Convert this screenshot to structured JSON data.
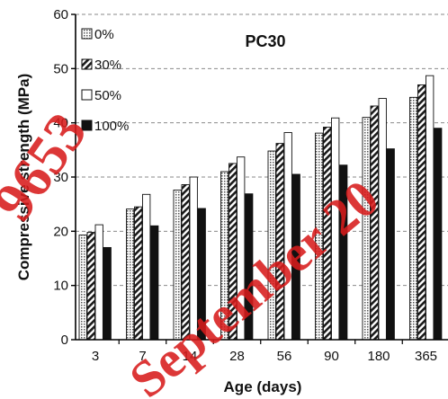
{
  "chart_data": {
    "type": "bar",
    "title": "PC30",
    "xlabel": "Age (days)",
    "ylabel": "Compressive strength (MPa)",
    "ylim": [
      0,
      60
    ],
    "yticks": [
      0,
      10,
      20,
      30,
      40,
      50,
      60
    ],
    "grid": "horizontal dashed",
    "legend_position": "top-left",
    "categories": [
      "3",
      "7",
      "14",
      "28",
      "56",
      "90",
      "180",
      "365"
    ],
    "series": [
      {
        "name": "0%",
        "pattern": "dotted",
        "values": [
          19.3,
          24.1,
          27.6,
          31.0,
          34.8,
          38.1,
          41.0,
          44.7
        ]
      },
      {
        "name": "30%",
        "pattern": "hatched",
        "values": [
          19.8,
          24.5,
          28.6,
          32.5,
          36.2,
          39.2,
          43.1,
          47.0
        ]
      },
      {
        "name": "50%",
        "pattern": "white",
        "values": [
          21.2,
          26.8,
          30.0,
          33.7,
          38.2,
          40.9,
          44.5,
          48.7
        ]
      },
      {
        "name": "100%",
        "pattern": "black",
        "values": [
          17.0,
          21.0,
          24.2,
          26.9,
          30.5,
          32.2,
          35.2,
          39.0
        ]
      }
    ]
  },
  "watermark": {
    "lines": [
      "9653",
      "September 20"
    ],
    "color": "#d81c1c"
  }
}
